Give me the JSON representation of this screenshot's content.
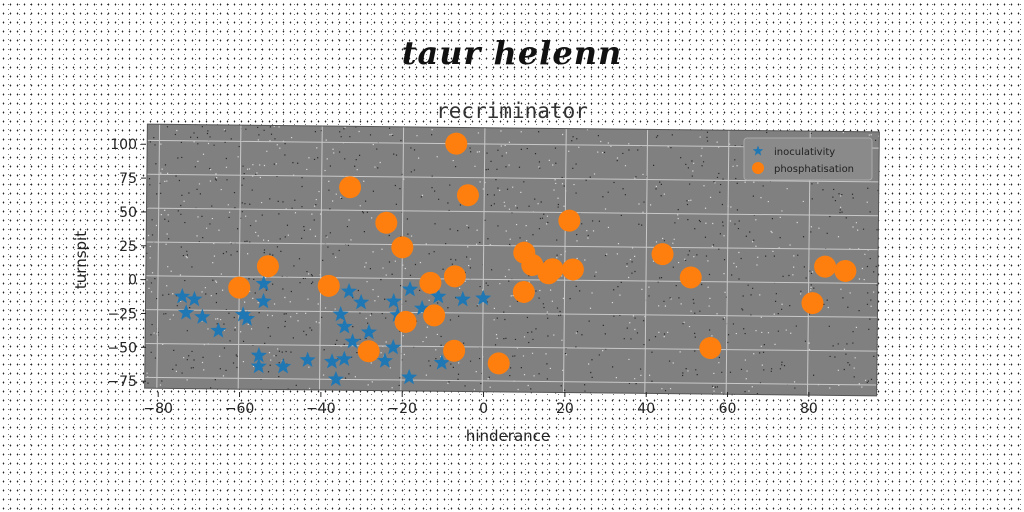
{
  "suptitle": "taur helenn",
  "chart_data": {
    "type": "scatter",
    "title": "recriminator",
    "xlabel": "hinderance",
    "ylabel": "turnspit",
    "xlim": [
      -83,
      97
    ],
    "ylim": [
      -83,
      112
    ],
    "xticks": [
      -80,
      -60,
      -40,
      -20,
      0,
      20,
      40,
      60,
      80
    ],
    "yticks": [
      -75,
      -50,
      -25,
      0,
      25,
      50,
      75,
      100
    ],
    "grid": true,
    "legend_position": "top-right",
    "background": "#808080",
    "series": [
      {
        "name": "inoculativity",
        "marker": "star",
        "color": "#1f77b4",
        "points": [
          [
            -74,
            -15
          ],
          [
            -71,
            -17
          ],
          [
            -73,
            -27
          ],
          [
            -69,
            -30
          ],
          [
            -65,
            -40
          ],
          [
            -59,
            -28
          ],
          [
            -58,
            -31
          ],
          [
            -54,
            -5
          ],
          [
            -54,
            -18
          ],
          [
            -55,
            -58
          ],
          [
            -55,
            -66
          ],
          [
            -49,
            -66
          ],
          [
            -43,
            -61
          ],
          [
            -37,
            -62
          ],
          [
            -36,
            -75
          ],
          [
            -34,
            -60
          ],
          [
            -34,
            -36
          ],
          [
            -35,
            -27
          ],
          [
            -33,
            -10
          ],
          [
            -30,
            -18
          ],
          [
            -32,
            -47
          ],
          [
            -28,
            -40
          ],
          [
            -24,
            -61
          ],
          [
            -22,
            -51
          ],
          [
            -22,
            -17
          ],
          [
            -21,
            -27
          ],
          [
            -18,
            -73
          ],
          [
            -18,
            -8
          ],
          [
            -15,
            -22
          ],
          [
            -11,
            -13
          ],
          [
            -10,
            -62
          ],
          [
            -5,
            -15
          ],
          [
            0,
            -14
          ]
        ]
      },
      {
        "name": "phosphatisation",
        "marker": "circle",
        "color": "#ff7f0e",
        "points": [
          [
            -60,
            -8
          ],
          [
            -53,
            8
          ],
          [
            -38,
            -6
          ],
          [
            -33,
            67
          ],
          [
            -24,
            41
          ],
          [
            -20,
            23
          ],
          [
            -19,
            -32
          ],
          [
            -13,
            -3
          ],
          [
            -12,
            -27
          ],
          [
            -28,
            -54
          ],
          [
            -7,
            100
          ],
          [
            -7,
            2
          ],
          [
            -7,
            -53
          ],
          [
            -4,
            62
          ],
          [
            4,
            -62
          ],
          [
            10,
            20
          ],
          [
            10,
            -9
          ],
          [
            12,
            11
          ],
          [
            16,
            5
          ],
          [
            17,
            8
          ],
          [
            21,
            44
          ],
          [
            22,
            8
          ],
          [
            44,
            20
          ],
          [
            51,
            3
          ],
          [
            56,
            -49
          ],
          [
            81,
            -15
          ],
          [
            84,
            12
          ],
          [
            89,
            9
          ]
        ]
      }
    ]
  }
}
